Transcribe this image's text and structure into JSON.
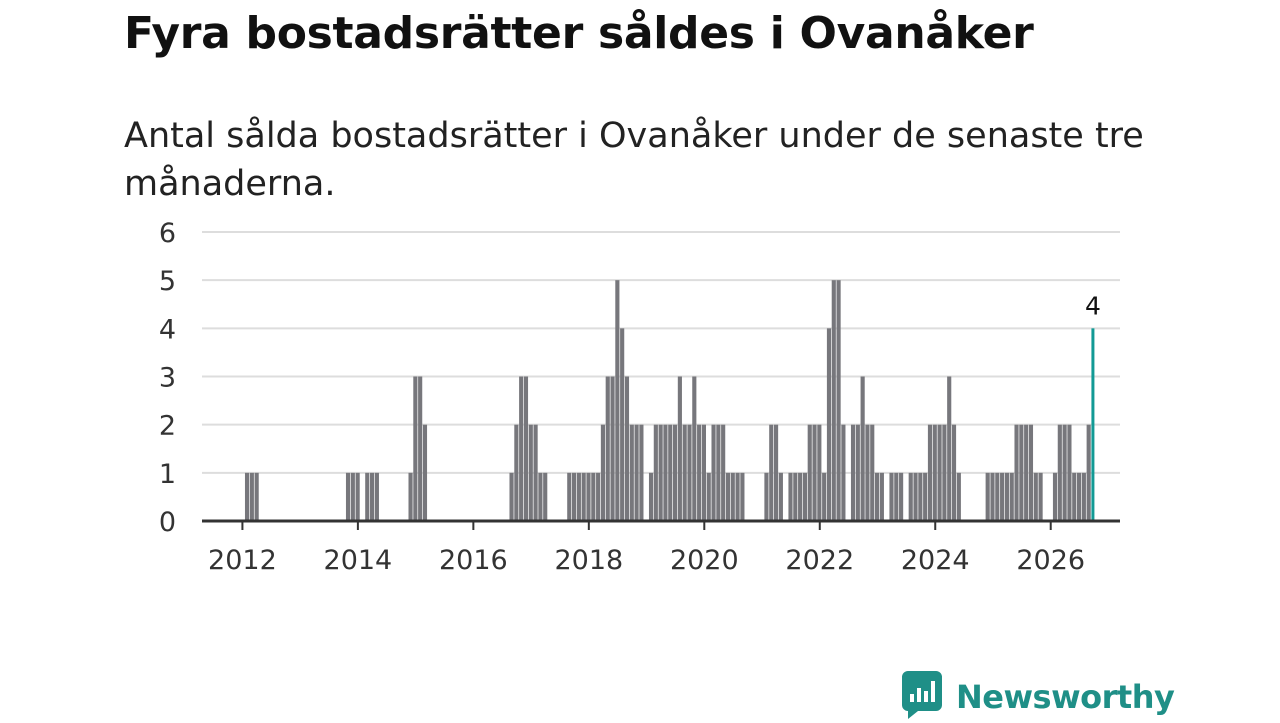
{
  "title": "Fyra bostadsrätter såldes i Ovanåker",
  "subtitle": "Antal sålda bostadsrätter i Ovanåker under de senaste tre månaderna.",
  "brand": {
    "name": "Newsworthy",
    "logo_icon": "chart-bubble-icon",
    "color": "#1f8f87"
  },
  "colors": {
    "bar": "#77777c",
    "highlight": "#129a95",
    "grid": "#dddddd",
    "axis": "#333333"
  },
  "chart_data": {
    "type": "bar",
    "title": "Fyra bostadsrätter såldes i Ovanåker",
    "subtitle": "Antal sålda bostadsrätter i Ovanåker under de senaste tre månaderna.",
    "xlabel": "",
    "ylabel": "",
    "x_unit": "rolling three-month window, monthly step",
    "x_range": [
      2011.3,
      2027.2
    ],
    "ylim": [
      0,
      6
    ],
    "y_ticks": [
      "0",
      "1",
      "2",
      "3",
      "4",
      "5",
      "6"
    ],
    "x_ticks": [
      "2012",
      "2014",
      "2016",
      "2018",
      "2020",
      "2022",
      "2024",
      "2026"
    ],
    "grid": true,
    "series": [
      {
        "name": "Antal sålda bostadsrätter",
        "start": 2012.08,
        "step": 0.0833,
        "values": [
          1,
          1,
          1,
          0,
          0,
          0,
          0,
          0,
          0,
          0,
          0,
          0,
          0,
          0,
          0,
          0,
          0,
          0,
          0,
          0,
          0,
          1,
          1,
          1,
          0,
          1,
          1,
          1,
          0,
          0,
          0,
          0,
          0,
          0,
          1,
          3,
          3,
          2,
          0,
          0,
          0,
          0,
          0,
          0,
          0,
          0,
          0,
          0,
          0,
          0,
          0,
          0,
          0,
          0,
          0,
          1,
          2,
          3,
          3,
          2,
          2,
          1,
          1,
          0,
          0,
          0,
          0,
          1,
          1,
          1,
          1,
          1,
          1,
          1,
          2,
          3,
          3,
          5,
          4,
          3,
          2,
          2,
          2,
          0,
          1,
          2,
          2,
          2,
          2,
          2,
          3,
          2,
          2,
          3,
          2,
          2,
          1,
          2,
          2,
          2,
          1,
          1,
          1,
          1,
          0,
          0,
          0,
          0,
          1,
          2,
          2,
          1,
          0,
          1,
          1,
          1,
          1,
          2,
          2,
          2,
          1,
          4,
          5,
          5,
          2,
          0,
          2,
          2,
          3,
          2,
          2,
          1,
          1,
          0,
          1,
          1,
          1,
          0,
          1,
          1,
          1,
          1,
          2,
          2,
          2,
          2,
          3,
          2,
          1,
          0,
          0,
          0,
          0,
          0,
          1,
          1,
          1,
          1,
          1,
          1,
          2,
          2,
          2,
          2,
          1,
          1,
          0,
          0,
          1,
          2,
          2,
          2,
          1,
          1,
          1,
          2,
          4
        ]
      }
    ],
    "annotations": [
      {
        "label": "4",
        "target": "last bar",
        "value": 4
      }
    ]
  }
}
